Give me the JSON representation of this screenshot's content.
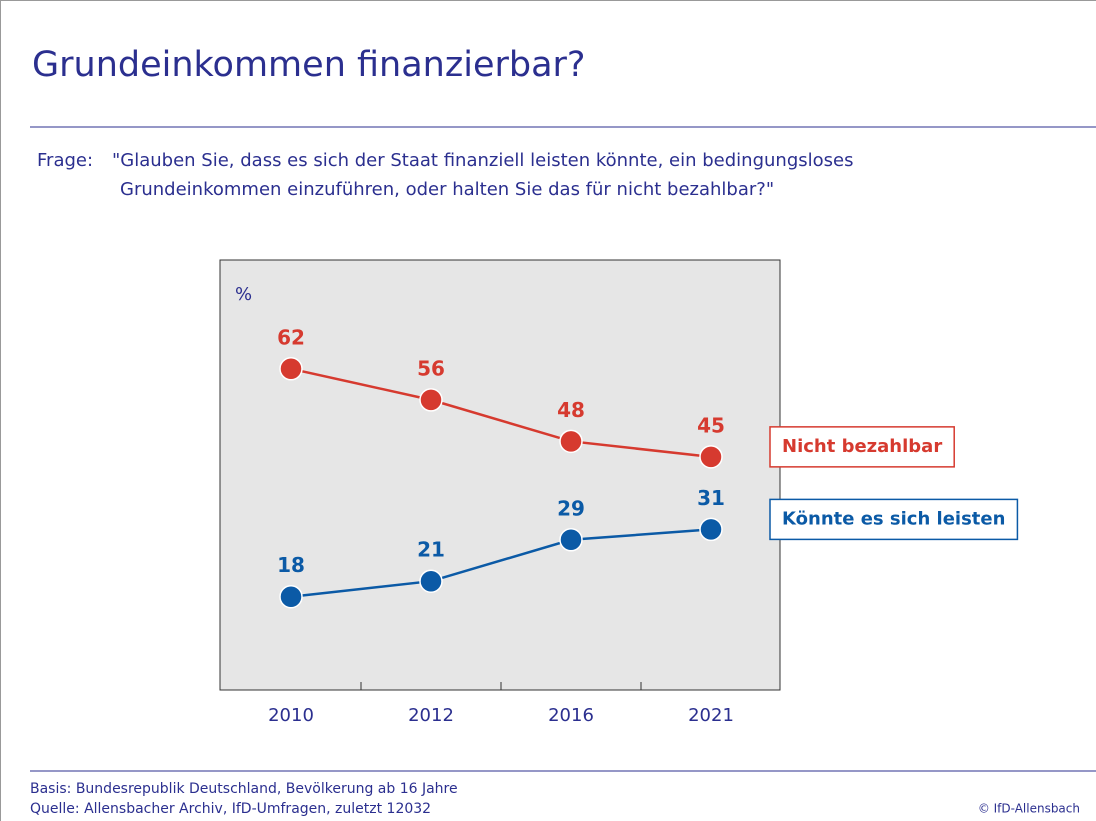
{
  "chart_data": {
    "type": "line",
    "title": "Grundeinkommen finanzierbar?",
    "question_label": "Frage:",
    "question": [
      "\"Glauben Sie, dass es sich der Staat finanziell leisten könnte, ein bedingungsloses",
      "Grundeinkommen einzuführen, oder halten Sie das für nicht bezahlbar?\""
    ],
    "y_unit": "%",
    "categories": [
      "2010",
      "2012",
      "2016",
      "2021"
    ],
    "ylim": [
      0,
      83
    ],
    "series": [
      {
        "name": "Nicht bezahlbar",
        "color": "#d63a2f",
        "values": [
          62,
          56,
          48,
          45
        ]
      },
      {
        "name": "Könnte es sich leisten",
        "color": "#0b5aa6",
        "values": [
          18,
          21,
          29,
          31
        ]
      }
    ]
  },
  "footer": {
    "basis": "Basis: Bundesrepublik Deutschland, Bevölkerung ab 16 Jahre",
    "source": "Quelle: Allensbacher Archiv, IfD-Umfragen, zuletzt 12032",
    "copyright": "© IfD-Allensbach"
  }
}
